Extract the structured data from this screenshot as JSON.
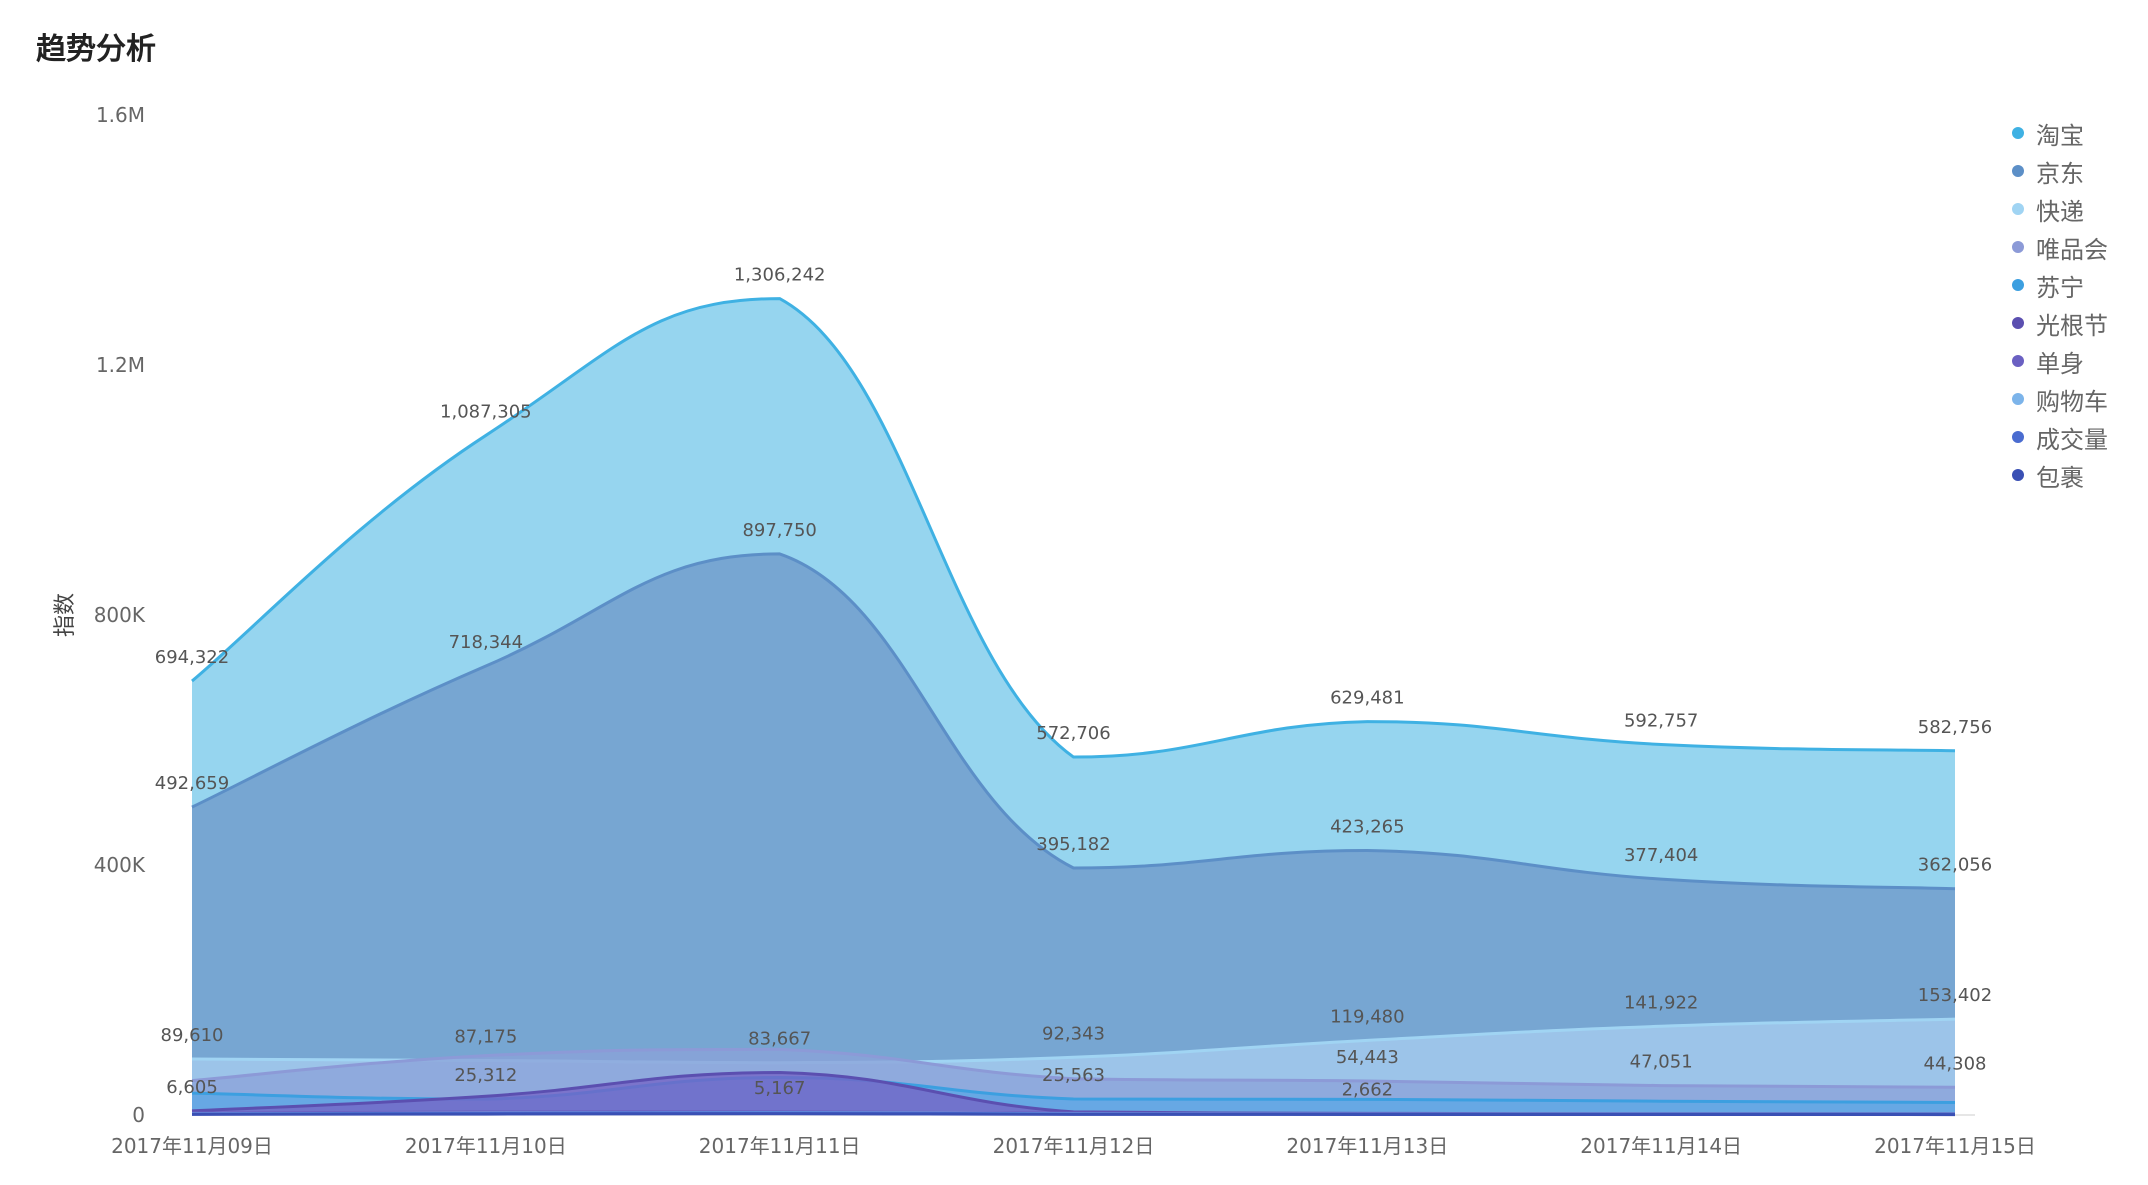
{
  "page": {
    "title": "趋势分析"
  },
  "chart_data": {
    "type": "area",
    "stacked": false,
    "smooth": true,
    "ylabel": "指数",
    "ylim": [
      0,
      1600000
    ],
    "yticks": [
      {
        "value": 0,
        "label": "0"
      },
      {
        "value": 400000,
        "label": "400K"
      },
      {
        "value": 800000,
        "label": "800K"
      },
      {
        "value": 1200000,
        "label": "1.2M"
      },
      {
        "value": 1600000,
        "label": "1.6M"
      }
    ],
    "categories": [
      "2017年11月09日",
      "2017年11月10日",
      "2017年11月11日",
      "2017年11月12日",
      "2017年11月13日",
      "2017年11月14日",
      "2017年11月15日"
    ],
    "legend_position": "right",
    "series": [
      {
        "name": "淘宝",
        "color": "#3fb1e3",
        "fill": "#96d5ef",
        "values": [
          694322,
          1087305,
          1306242,
          572706,
          629481,
          592757,
          582756
        ],
        "labels": [
          "694,322",
          "1,087,305",
          "1,306,242",
          "572,706",
          "629,481",
          "592,757",
          "582,756"
        ]
      },
      {
        "name": "京东",
        "color": "#5c8fc7",
        "fill": "#77a6d2",
        "values": [
          492659,
          718344,
          897750,
          395182,
          423265,
          377404,
          362056
        ],
        "labels": [
          "492,659",
          "718,344",
          "897,750",
          "395,182",
          "423,265",
          "377,404",
          "362,056"
        ]
      },
      {
        "name": "快递",
        "color": "#a0d4f3",
        "fill": "#a8cdf0",
        "values": [
          89610,
          87175,
          83667,
          92343,
          119480,
          141922,
          153402
        ],
        "labels": [
          "89,610",
          "87,175",
          "83,667",
          "92,343",
          "119,480",
          "141,922",
          "153,402"
        ]
      },
      {
        "name": "唯品会",
        "color": "#8c9ad7",
        "fill": "#8ba2d8",
        "values": [
          55000,
          95000,
          105000,
          58000,
          54443,
          47051,
          44308
        ],
        "labels": [
          "",
          "",
          "",
          "",
          "54,443",
          "47,051",
          "44,308"
        ]
      },
      {
        "name": "苏宁",
        "color": "#3c9fe0",
        "fill": "#5aa7e5",
        "values": [
          35000,
          25312,
          60000,
          25563,
          25000,
          22000,
          20000
        ],
        "labels": [
          "",
          "25,312",
          "",
          "25,563",
          "",
          "",
          ""
        ]
      },
      {
        "name": "光根节",
        "color": "#5b4fb0",
        "fill": "#7462c4",
        "values": [
          6605,
          30000,
          68000,
          5000,
          2662,
          2000,
          1800
        ],
        "labels": [
          "6,605",
          "",
          "",
          "",
          "2,662",
          "",
          ""
        ]
      },
      {
        "name": "单身",
        "color": "#6a60c2",
        "fill": "#7b6fcc",
        "values": [
          3000,
          5000,
          5167,
          3000,
          2000,
          1500,
          1200
        ],
        "labels": [
          "",
          "",
          "5,167",
          "",
          "",
          "",
          ""
        ]
      },
      {
        "name": "购物车",
        "color": "#7cb4ea",
        "fill": "#8ab9ea",
        "values": [
          2000,
          3000,
          4000,
          2000,
          1500,
          1200,
          1000
        ],
        "labels": [
          "",
          "",
          "",
          "",
          "",
          "",
          ""
        ]
      },
      {
        "name": "成交量",
        "color": "#4a6cd0",
        "fill": "#5876d4",
        "values": [
          1500,
          2500,
          3500,
          1500,
          1200,
          1000,
          900
        ],
        "labels": [
          "",
          "",
          "",
          "",
          "",
          "",
          ""
        ]
      },
      {
        "name": "包裹",
        "color": "#3a50b4",
        "fill": "#4a5fbf",
        "values": [
          1000,
          1500,
          2000,
          1000,
          900,
          800,
          700
        ],
        "labels": [
          "",
          "",
          "",
          "",
          "",
          "",
          ""
        ]
      }
    ]
  }
}
